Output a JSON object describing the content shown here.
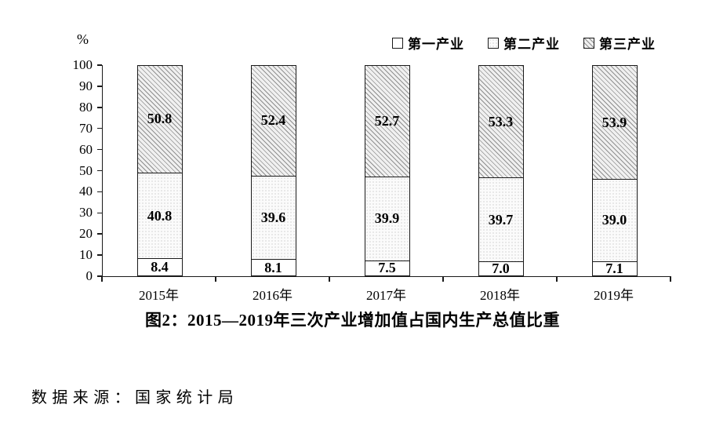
{
  "colors": {
    "axis": "#1a1a1a",
    "bar_border": "#1a1a1a",
    "text": "#000000",
    "hatch_line": "#8f8f8f",
    "background": "#ffffff"
  },
  "chart_data": {
    "type": "bar",
    "stacked": true,
    "title": "图2：2015—2019年三次产业增加值占国内生产总值比重",
    "unit_label": "%",
    "categories": [
      "2015年",
      "2016年",
      "2017年",
      "2018年",
      "2019年"
    ],
    "series": [
      {
        "name": "第一产业",
        "fill": "white",
        "values": [
          8.4,
          8.1,
          7.5,
          7.0,
          7.1
        ]
      },
      {
        "name": "第二产业",
        "fill": "dots",
        "values": [
          40.8,
          39.6,
          39.9,
          39.7,
          39.0
        ]
      },
      {
        "name": "第三产业",
        "fill": "diagonal-hatch",
        "values": [
          50.8,
          52.4,
          52.7,
          53.3,
          53.9
        ]
      }
    ],
    "ylim": [
      0,
      100
    ],
    "y_ticks": [
      0,
      10,
      20,
      30,
      40,
      50,
      60,
      70,
      80,
      90,
      100
    ],
    "grid": false,
    "legend_position": "top-right"
  },
  "footer": {
    "source": "数据来源：国家统计局"
  }
}
